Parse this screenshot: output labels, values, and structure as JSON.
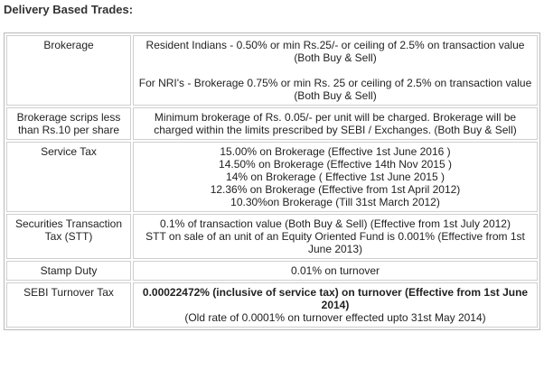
{
  "title": "Delivery Based Trades:",
  "rows": {
    "brokerage": {
      "label": "Brokerage",
      "resident": "Resident Indians - 0.50% or min Rs.25/- or ceiling of 2.5% on transaction value (Both Buy & Sell)",
      "nri": "For NRI's - Brokerage 0.75% or min Rs. 25 or ceiling of 2.5% on transaction value (Both Buy & Sell)"
    },
    "scrips": {
      "label": "Brokerage scrips less than Rs.10 per share",
      "text": "Minimum brokerage of Rs. 0.05/- per unit will be charged. Brokerage will be charged within the limits prescribed by SEBI / Exchanges. (Both Buy & Sell)"
    },
    "service_tax": {
      "label": "Service Tax",
      "lines": [
        "15.00% on Brokerage (Effective 1st June 2016 )",
        "14.50% on Brokerage (Effective 14th Nov 2015 )",
        "14% on Brokerage ( Effective 1st June 2015 )",
        "12.36% on Brokerage (Effective from 1st April 2012)",
        "10.30%on Brokerage (Till 31st March 2012)"
      ]
    },
    "stt": {
      "label": "Securities Transaction Tax (STT)",
      "line1": "0.1% of transaction value (Both Buy & Sell) (Effective from 1st July 2012)",
      "line2": "STT on sale of an unit of an Equity Oriented Fund is 0.001% (Effective from 1st June 2013)"
    },
    "stamp": {
      "label": "Stamp Duty",
      "text": "0.01% on turnover"
    },
    "sebi": {
      "label": "SEBI Turnover Tax",
      "bold_text": "0.00022472% (inclusive of service tax) on turnover (Effective from 1st June 2014)",
      "old_rate": "(Old rate of 0.0001% on turnover effected upto 31st May 2014)"
    }
  }
}
